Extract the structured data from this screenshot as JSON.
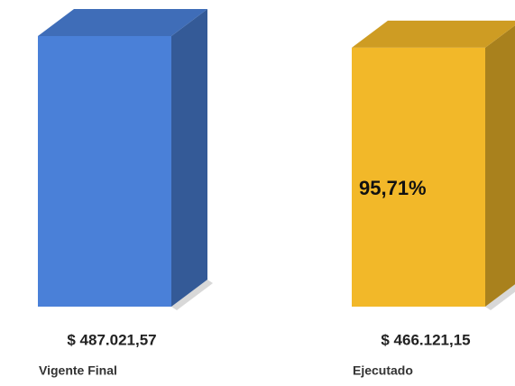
{
  "chart_data": {
    "type": "bar3d",
    "categories": [
      "Vigente Final",
      "Ejecutado"
    ],
    "values": [
      487021.57,
      466121.15
    ],
    "value_labels": [
      "$ 487.021,57",
      "$ 466.121,15"
    ],
    "colors": [
      "#4a80d8",
      "#f2b829"
    ],
    "annotation": "95,71%"
  }
}
